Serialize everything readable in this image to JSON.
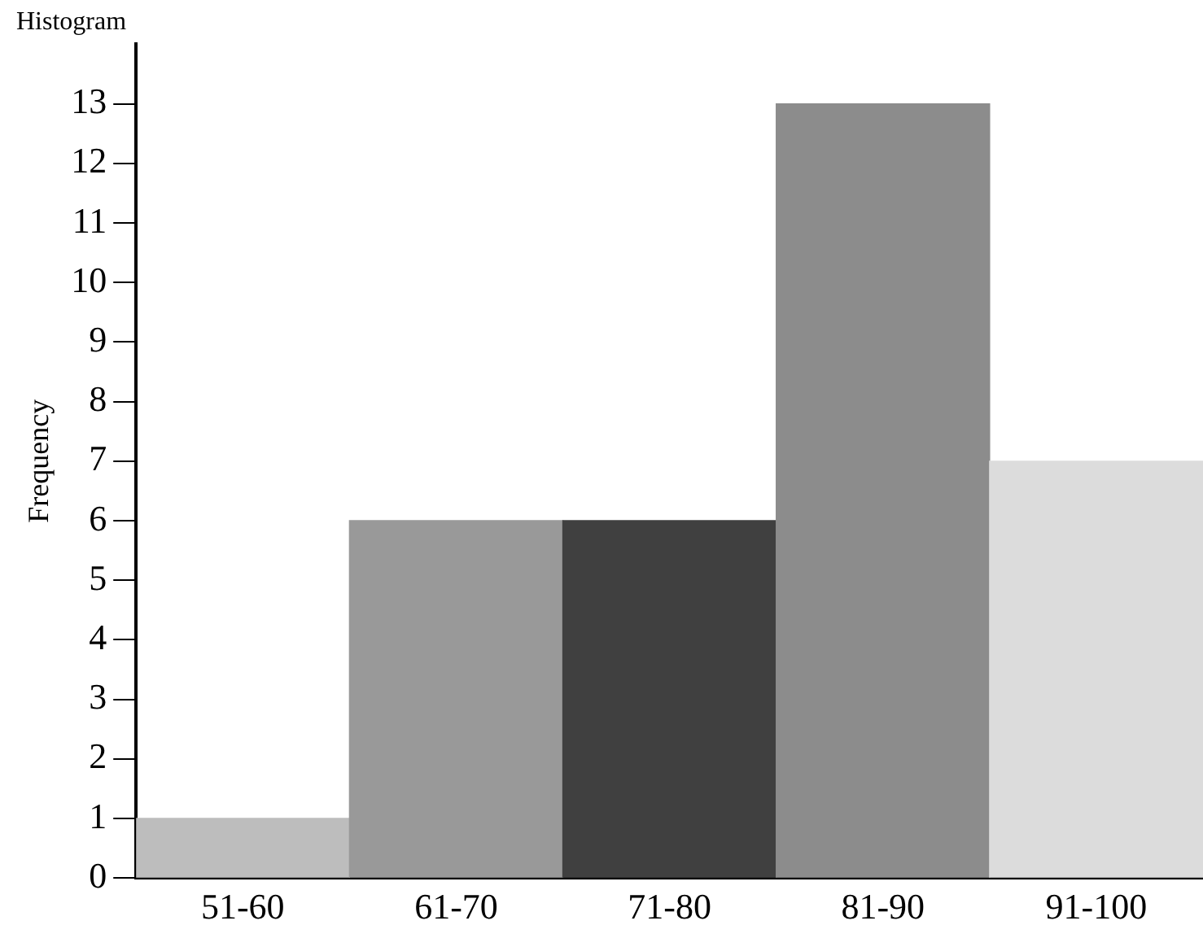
{
  "chart_data": {
    "type": "bar",
    "title": "Histogram",
    "ylabel": "Frequency",
    "categories": [
      "51-60",
      "61-70",
      "71-80",
      "81-90",
      "91-100"
    ],
    "values": [
      1,
      6,
      6,
      13,
      7
    ],
    "colors": [
      "#bdbdbd",
      "#999999",
      "#404040",
      "#8c8c8c",
      "#dcdcdc"
    ],
    "ylim": [
      0,
      14
    ],
    "yticks": [
      0,
      1,
      2,
      3,
      4,
      5,
      6,
      7,
      8,
      9,
      10,
      11,
      12,
      13
    ],
    "grid": false,
    "legend": false
  }
}
